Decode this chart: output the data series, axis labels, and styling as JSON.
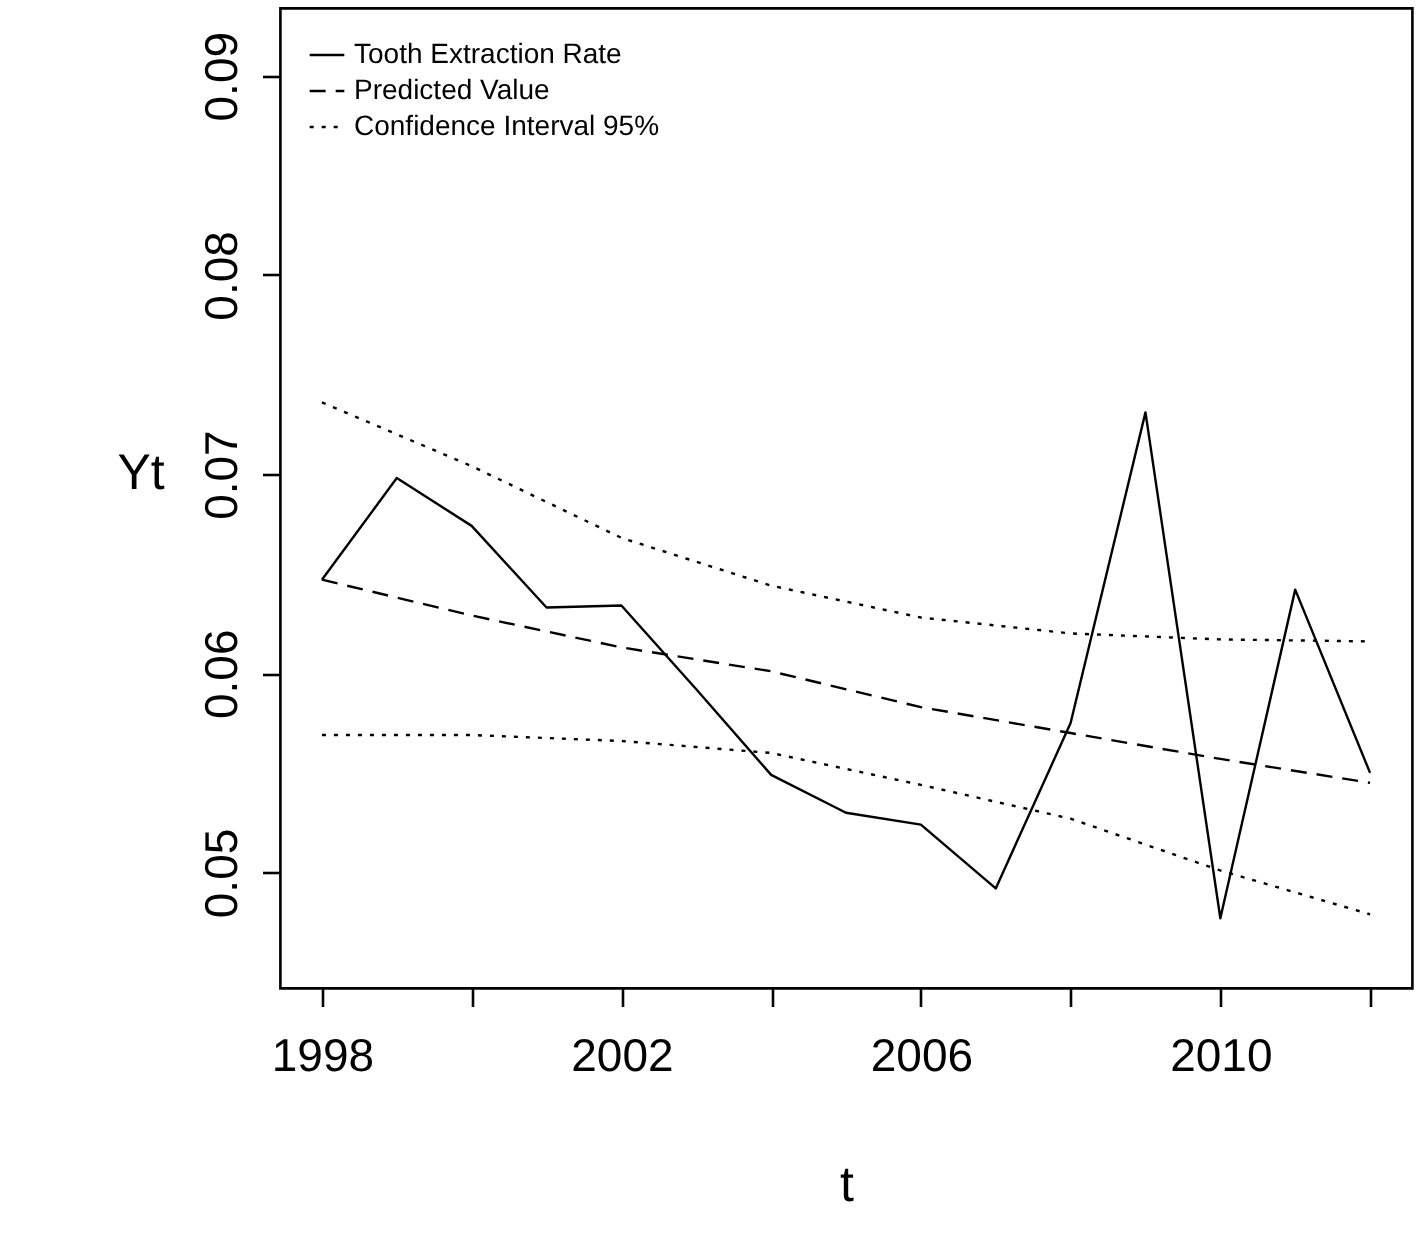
{
  "chart_data": {
    "type": "line",
    "xlabel": "t",
    "ylabel": "Yt",
    "legend": "top left",
    "grid": false,
    "marker": "none",
    "xlim": [
      1997.44,
      2012.56
    ],
    "ylim": [
      0.0442,
      0.0934
    ],
    "xticks": [
      1998,
      {
        "value": 2000,
        "label": null
      },
      2002,
      {
        "value": 2004,
        "label": null
      },
      2006,
      {
        "value": 2008,
        "label": null
      },
      2010,
      {
        "value": 2012,
        "label": null
      }
    ],
    "yticks": [
      0.05,
      0.06,
      0.07,
      0.08,
      0.09
    ],
    "series": [
      {
        "name": "Tooth Extraction Rate",
        "color": "#000000",
        "line_style": "solid",
        "x": [
          1998,
          1999,
          2000,
          2001,
          2002,
          2003,
          2004,
          2005,
          2006,
          2007,
          2008,
          2009,
          2010,
          2011,
          2012
        ],
        "values": [
          0.0647,
          0.0698,
          0.0674,
          0.0633,
          0.0634,
          0.0592,
          0.0549,
          0.053,
          0.0524,
          0.0492,
          0.0575,
          0.0731,
          0.0477,
          0.0642,
          0.055
        ]
      },
      {
        "name": "Predicted Value",
        "color": "#000000",
        "line_style": "dashed",
        "x": [
          1998,
          2000,
          2002,
          2004,
          2006,
          2008,
          2010,
          2012
        ],
        "values": [
          0.0647,
          0.0629,
          0.0613,
          0.0601,
          0.0583,
          0.057,
          0.0557,
          0.0545
        ]
      },
      {
        "name": "Confidence Interval 95%",
        "color": "#000000",
        "line_style": "dotted",
        "x": [
          1998,
          2000,
          2002,
          2004,
          2006,
          2008,
          2010,
          2012
        ],
        "values": [
          0.0736,
          0.0704,
          0.0668,
          0.0644,
          0.0628,
          0.062,
          0.0617,
          0.0616
        ]
      },
      {
        "color": "#000000",
        "line_style": "dotted",
        "x": [
          1998,
          2000,
          2002,
          2004,
          2006,
          2008,
          2010,
          2012
        ],
        "values": [
          0.0569,
          0.0569,
          0.0566,
          0.056,
          0.0544,
          0.0527,
          0.0501,
          0.0479
        ]
      }
    ]
  }
}
